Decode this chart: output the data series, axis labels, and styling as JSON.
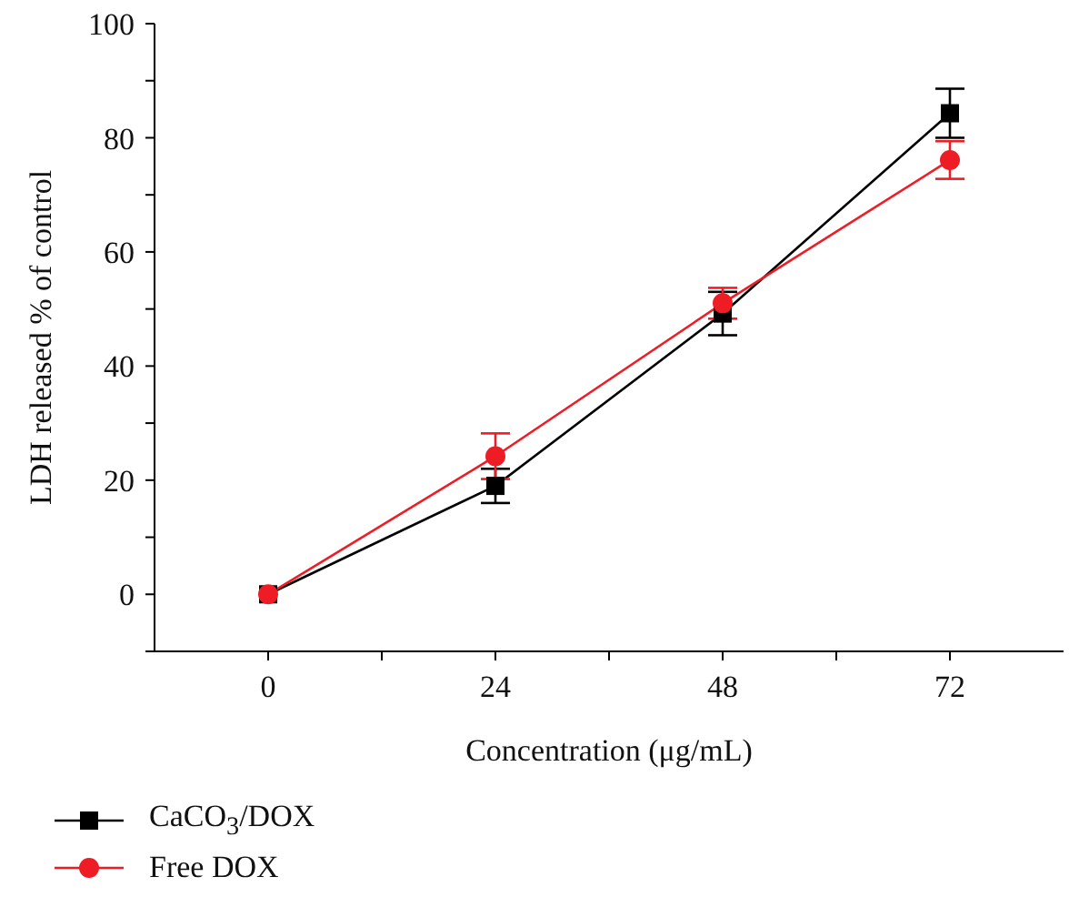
{
  "chart_data": {
    "type": "line",
    "xlabel": "Concentration (μg/mL)",
    "ylabel": "LDH released % of control",
    "xlim": [
      -12,
      84
    ],
    "xticks": [
      0,
      {
        "value": 12,
        "label": null
      },
      24,
      {
        "value": 36,
        "label": null
      },
      48,
      {
        "value": 60,
        "label": null
      },
      72
    ],
    "ylim": [
      -10,
      100
    ],
    "yticks": [
      {
        "value": -10,
        "label": null
      },
      0,
      {
        "value": 10,
        "label": null
      },
      20,
      {
        "value": 30,
        "label": null
      },
      40,
      {
        "value": 50,
        "label": null
      },
      60,
      {
        "value": 70,
        "label": null
      },
      80,
      {
        "value": 90,
        "label": null
      },
      100
    ],
    "x": [
      0,
      24,
      48,
      72
    ],
    "series": [
      {
        "name": "CaCO$_{3}$/DOX",
        "color": "#000000",
        "marker": "square",
        "values": [
          0,
          19.0,
          49.2,
          84.3
        ],
        "errors": [
          null,
          3,
          3.8,
          4.3
        ]
      },
      {
        "name": "Free DOX",
        "color": "#ee1c25",
        "marker": "circle",
        "values": [
          0,
          24.2,
          51.0,
          76.1
        ],
        "errors": [
          null,
          4,
          2.7,
          3.3
        ]
      }
    ],
    "grid": false,
    "legend": "bottom left"
  }
}
